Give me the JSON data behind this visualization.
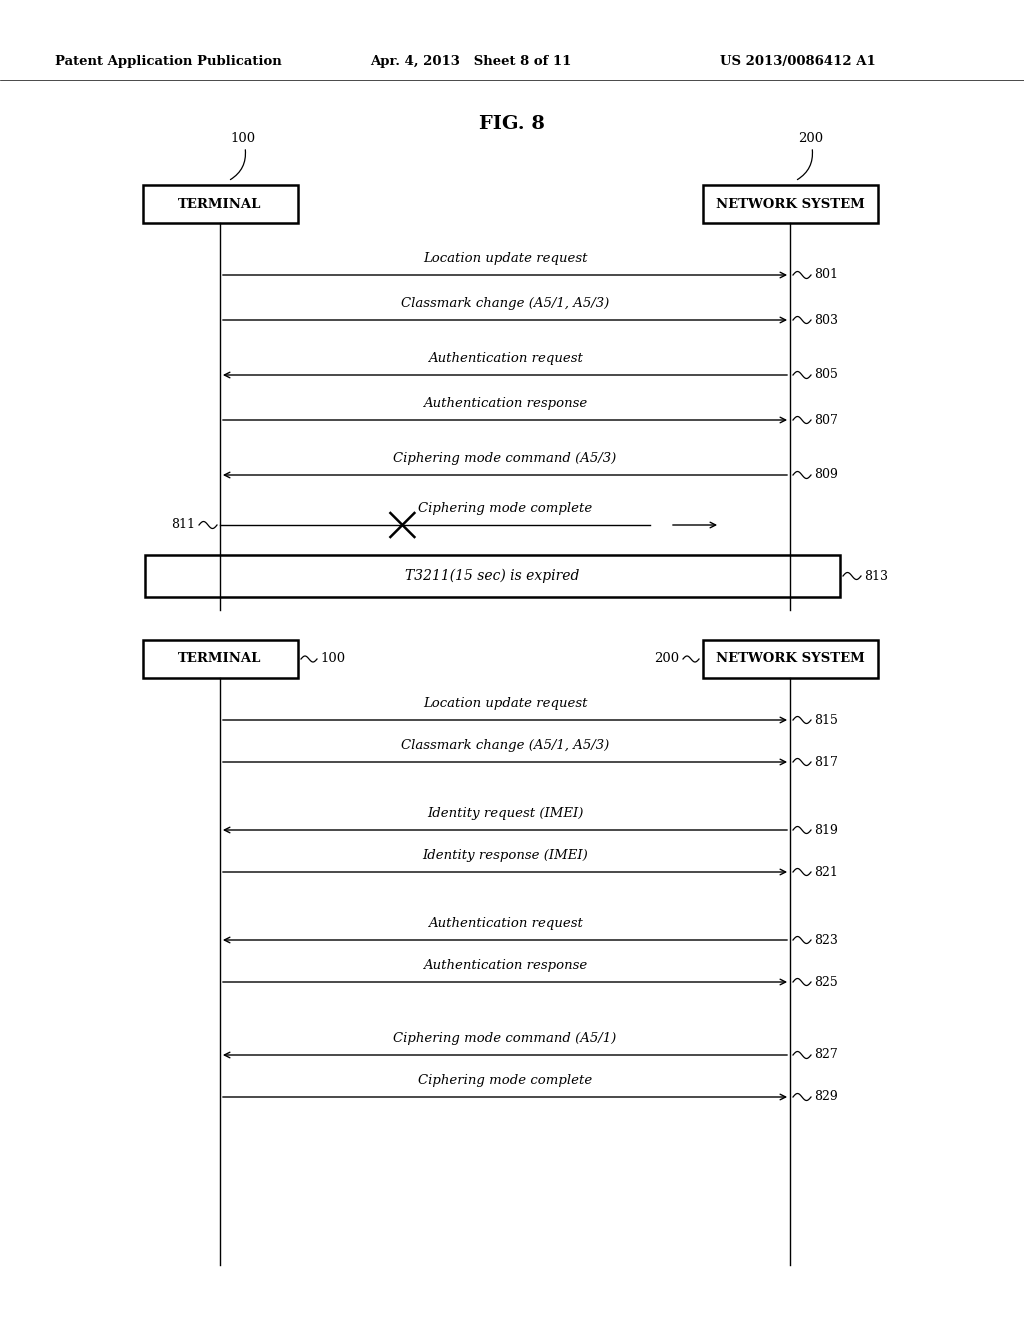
{
  "title": "FIG. 8",
  "header_left": "Patent Application Publication",
  "header_mid": "Apr. 4, 2013   Sheet 8 of 11",
  "header_right": "US 2013/0086412 A1",
  "bg_color": "#ffffff",
  "section1": {
    "terminal_label": "TERMINAL",
    "terminal_ref": "100",
    "network_label": "NETWORK SYSTEM",
    "network_ref": "200",
    "messages": [
      {
        "text": "Location update request",
        "dir": "right",
        "ref": "801",
        "broken": false
      },
      {
        "text": "Classmark change (A5/1, A5/3)",
        "dir": "right",
        "ref": "803",
        "broken": false
      },
      {
        "text": "Authentication request",
        "dir": "left",
        "ref": "805",
        "broken": false
      },
      {
        "text": "Authentication response",
        "dir": "right",
        "ref": "807",
        "broken": false
      },
      {
        "text": "Ciphering mode command (A5/3)",
        "dir": "left",
        "ref": "809",
        "broken": false
      },
      {
        "text": "Ciphering mode complete",
        "dir": "right_broken",
        "ref": "811",
        "ref_side": "left"
      }
    ],
    "timer_box": {
      "text": "T3211(15 sec) is expired",
      "ref": "813"
    }
  },
  "section2": {
    "terminal_label": "TERMINAL",
    "terminal_ref": "100",
    "network_label": "NETWORK SYSTEM",
    "network_ref": "200",
    "messages": [
      {
        "text": "Location update request",
        "dir": "right",
        "ref": "815",
        "broken": false
      },
      {
        "text": "Classmark change (A5/1, A5/3)",
        "dir": "right",
        "ref": "817",
        "broken": false
      },
      {
        "text": "Identity request (IMEI)",
        "dir": "left",
        "ref": "819",
        "broken": false
      },
      {
        "text": "Identity response (IMEI)",
        "dir": "right",
        "ref": "821",
        "broken": false
      },
      {
        "text": "Authentication request",
        "dir": "left",
        "ref": "823",
        "broken": false
      },
      {
        "text": "Authentication response",
        "dir": "right",
        "ref": "825",
        "broken": false
      },
      {
        "text": "Ciphering mode command (A5/1)",
        "dir": "left",
        "ref": "827",
        "broken": false
      },
      {
        "text": "Ciphering mode complete",
        "dir": "right",
        "ref": "829",
        "broken": false
      }
    ]
  }
}
